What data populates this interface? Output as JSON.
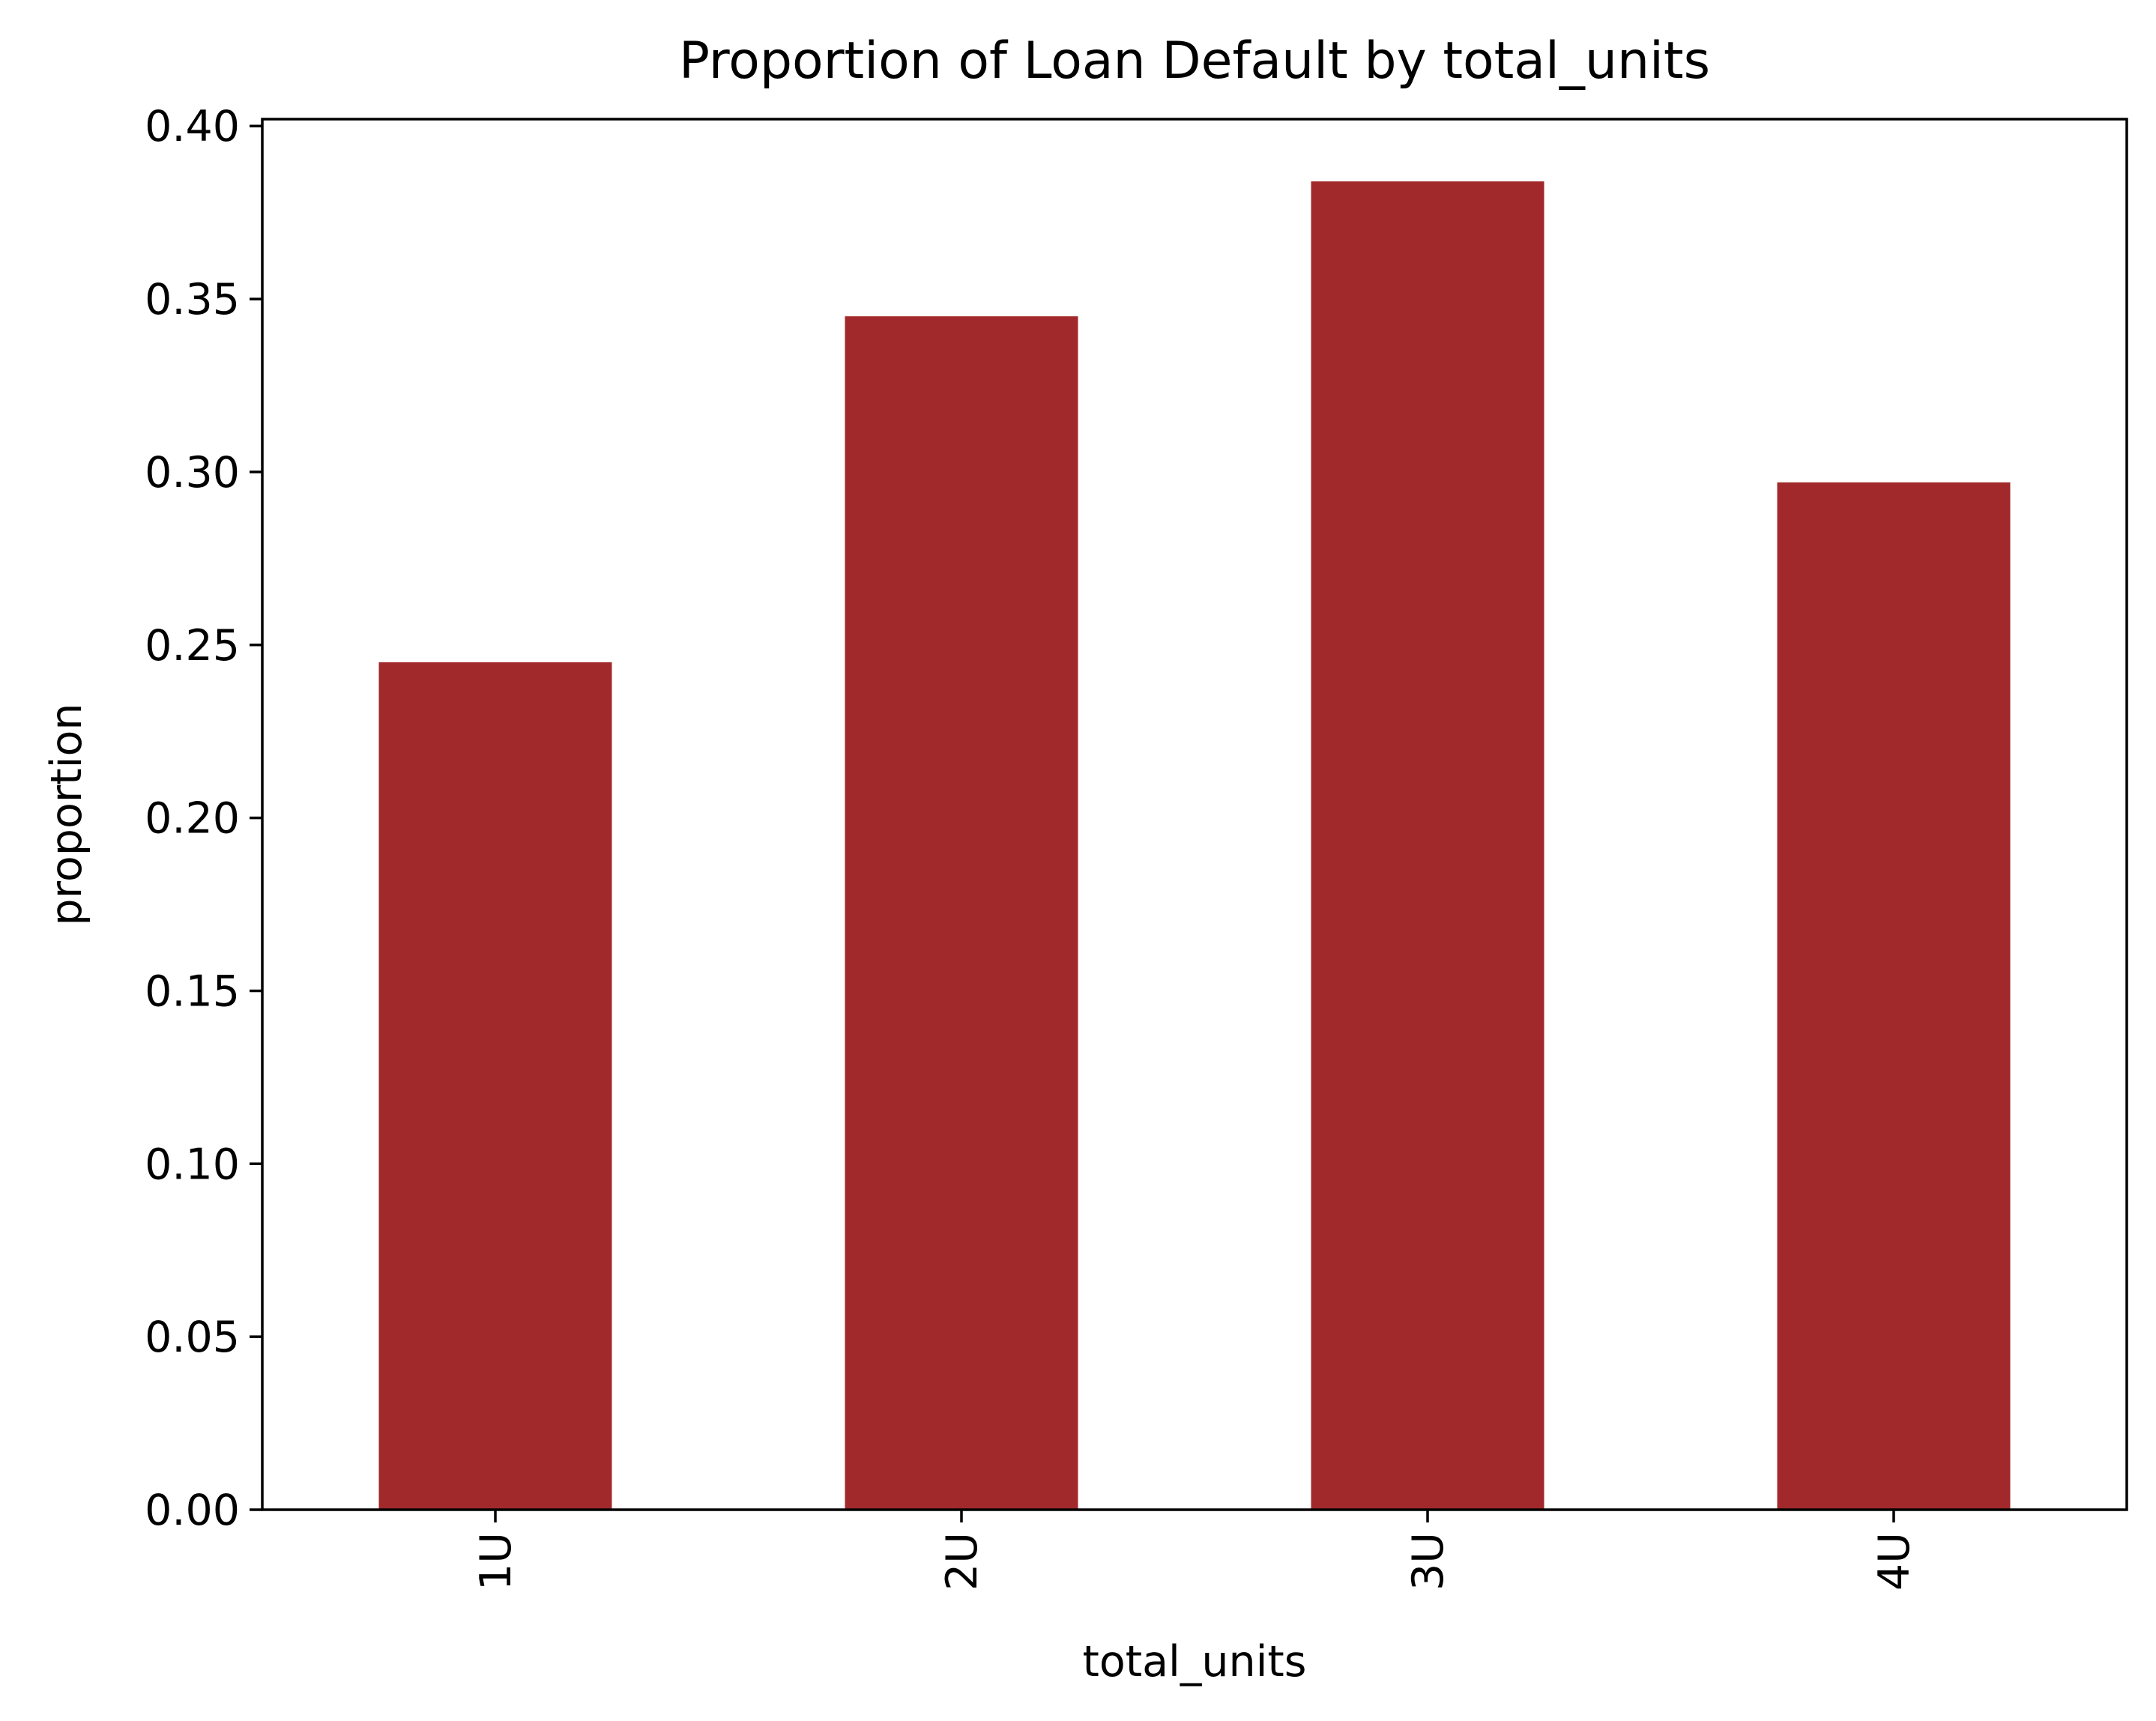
{
  "chart_data": {
    "type": "bar",
    "title": "Proportion of Loan Default by total_units",
    "xlabel": "total_units",
    "ylabel": "proportion",
    "categories": [
      "1U",
      "2U",
      "3U",
      "4U"
    ],
    "values": [
      0.245,
      0.345,
      0.384,
      0.297
    ],
    "ylim": [
      0,
      0.402
    ],
    "yticks": [
      0.0,
      0.05,
      0.1,
      0.15,
      0.2,
      0.25,
      0.3,
      0.35,
      0.4
    ],
    "ytick_labels": [
      "0.00",
      "0.05",
      "0.10",
      "0.15",
      "0.20",
      "0.25",
      "0.30",
      "0.35",
      "0.40"
    ],
    "xtick_rotation": "vertical",
    "grid": false,
    "legend": "none",
    "bar_color": "#a2292b"
  }
}
